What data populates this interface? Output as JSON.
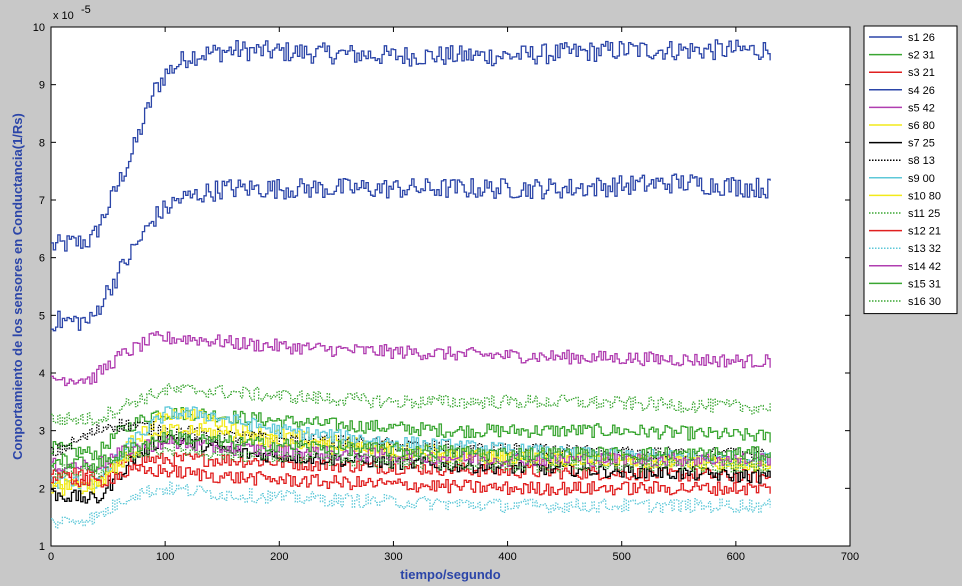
{
  "chart_data": {
    "type": "line",
    "xlabel": "tiempo/segundo",
    "ylabel": "Conportamiento de los sensores en Conductancia(1/Rs)",
    "xlim": [
      0,
      700
    ],
    "ylim": [
      1,
      10
    ],
    "xticks": [
      0,
      100,
      200,
      300,
      400,
      500,
      600,
      700
    ],
    "yticks": [
      1,
      2,
      3,
      4,
      5,
      6,
      7,
      8,
      9,
      10
    ],
    "y_exponent_label": "x 10",
    "y_exponent_power": "-5",
    "grid": false,
    "legend_position": "right",
    "x_end": 630,
    "series": [
      {
        "name": "s1 26",
        "color": "#2b45a8",
        "style": "solid",
        "values": [
          [
            0,
            6.2
          ],
          [
            35,
            6.3
          ],
          [
            45,
            6.7
          ],
          [
            70,
            7.8
          ],
          [
            90,
            8.9
          ],
          [
            100,
            9.2
          ],
          [
            120,
            9.5
          ],
          [
            160,
            9.6
          ],
          [
            300,
            9.5
          ],
          [
            400,
            9.5
          ],
          [
            500,
            9.6
          ],
          [
            630,
            9.6
          ]
        ]
      },
      {
        "name": "s2 31",
        "color": "#3aa632",
        "style": "solid",
        "values": [
          [
            0,
            2.7
          ],
          [
            40,
            2.6
          ],
          [
            60,
            3.0
          ],
          [
            90,
            3.3
          ],
          [
            130,
            3.3
          ],
          [
            180,
            3.2
          ],
          [
            250,
            3.1
          ],
          [
            350,
            3.0
          ],
          [
            500,
            3.0
          ],
          [
            630,
            2.9
          ]
        ]
      },
      {
        "name": "s3 21",
        "color": "#e01f1f",
        "style": "solid",
        "values": [
          [
            0,
            2.3
          ],
          [
            40,
            2.2
          ],
          [
            70,
            2.5
          ],
          [
            100,
            2.5
          ],
          [
            150,
            2.5
          ],
          [
            250,
            2.4
          ],
          [
            400,
            2.3
          ],
          [
            630,
            2.2
          ]
        ]
      },
      {
        "name": "s4 26",
        "color": "#2b45a8",
        "style": "solid",
        "values": [
          [
            0,
            4.9
          ],
          [
            35,
            4.9
          ],
          [
            45,
            5.3
          ],
          [
            70,
            6.1
          ],
          [
            90,
            6.7
          ],
          [
            110,
            7.0
          ],
          [
            150,
            7.2
          ],
          [
            300,
            7.2
          ],
          [
            450,
            7.2
          ],
          [
            550,
            7.3
          ],
          [
            630,
            7.2
          ]
        ]
      },
      {
        "name": "s5 42",
        "color": "#b03db0",
        "style": "solid",
        "values": [
          [
            0,
            3.9
          ],
          [
            35,
            3.9
          ],
          [
            60,
            4.3
          ],
          [
            90,
            4.6
          ],
          [
            120,
            4.6
          ],
          [
            170,
            4.5
          ],
          [
            250,
            4.4
          ],
          [
            400,
            4.3
          ],
          [
            630,
            4.2
          ]
        ]
      },
      {
        "name": "s6 80",
        "color": "#f2ea1a",
        "style": "solid",
        "values": [
          [
            0,
            2.0
          ],
          [
            40,
            2.0
          ],
          [
            70,
            2.8
          ],
          [
            100,
            3.3
          ],
          [
            120,
            3.3
          ],
          [
            170,
            3.0
          ],
          [
            250,
            2.8
          ],
          [
            350,
            2.6
          ],
          [
            500,
            2.5
          ],
          [
            630,
            2.4
          ]
        ]
      },
      {
        "name": "s7 25",
        "color": "#000000",
        "style": "solid",
        "values": [
          [
            0,
            1.9
          ],
          [
            40,
            1.8
          ],
          [
            70,
            2.5
          ],
          [
            100,
            2.9
          ],
          [
            120,
            2.8
          ],
          [
            170,
            2.6
          ],
          [
            250,
            2.5
          ],
          [
            350,
            2.4
          ],
          [
            500,
            2.3
          ],
          [
            630,
            2.2
          ]
        ]
      },
      {
        "name": "s8 13",
        "color": "#000000",
        "style": "dotted",
        "values": [
          [
            0,
            2.6
          ],
          [
            30,
            2.9
          ],
          [
            50,
            3.1
          ],
          [
            70,
            3.1
          ],
          [
            100,
            3.0
          ],
          [
            150,
            2.9
          ],
          [
            250,
            2.8
          ],
          [
            350,
            2.7
          ],
          [
            500,
            2.6
          ],
          [
            630,
            2.6
          ]
        ]
      },
      {
        "name": "s9 00",
        "color": "#5ec8d8",
        "style": "solid",
        "values": [
          [
            0,
            2.1
          ],
          [
            40,
            2.1
          ],
          [
            70,
            2.8
          ],
          [
            100,
            3.3
          ],
          [
            130,
            3.3
          ],
          [
            200,
            3.0
          ],
          [
            300,
            2.8
          ],
          [
            450,
            2.6
          ],
          [
            630,
            2.5
          ]
        ]
      },
      {
        "name": "s10 80",
        "color": "#f2ea1a",
        "style": "solid",
        "values": [
          [
            0,
            2.1
          ],
          [
            40,
            2.1
          ],
          [
            70,
            2.6
          ],
          [
            100,
            3.0
          ],
          [
            130,
            3.0
          ],
          [
            200,
            2.8
          ],
          [
            300,
            2.6
          ],
          [
            450,
            2.5
          ],
          [
            630,
            2.4
          ]
        ]
      },
      {
        "name": "s11 25",
        "color": "#3aa632",
        "style": "dotted",
        "values": [
          [
            0,
            3.2
          ],
          [
            40,
            3.2
          ],
          [
            70,
            3.5
          ],
          [
            100,
            3.7
          ],
          [
            130,
            3.7
          ],
          [
            200,
            3.6
          ],
          [
            300,
            3.5
          ],
          [
            450,
            3.5
          ],
          [
            630,
            3.4
          ]
        ]
      },
      {
        "name": "s12 21",
        "color": "#e01f1f",
        "style": "solid",
        "values": [
          [
            0,
            2.2
          ],
          [
            40,
            2.1
          ],
          [
            70,
            2.3
          ],
          [
            100,
            2.3
          ],
          [
            150,
            2.2
          ],
          [
            250,
            2.1
          ],
          [
            400,
            2.0
          ],
          [
            630,
            2.0
          ]
        ]
      },
      {
        "name": "s13 32",
        "color": "#5ec8d8",
        "style": "dotted",
        "values": [
          [
            0,
            1.4
          ],
          [
            40,
            1.5
          ],
          [
            70,
            1.9
          ],
          [
            100,
            2.0
          ],
          [
            150,
            1.9
          ],
          [
            250,
            1.8
          ],
          [
            400,
            1.7
          ],
          [
            630,
            1.7
          ]
        ]
      },
      {
        "name": "s14 42",
        "color": "#b03db0",
        "style": "solid",
        "values": [
          [
            0,
            2.4
          ],
          [
            40,
            2.4
          ],
          [
            70,
            2.7
          ],
          [
            100,
            2.8
          ],
          [
            150,
            2.7
          ],
          [
            250,
            2.6
          ],
          [
            400,
            2.5
          ],
          [
            630,
            2.5
          ]
        ]
      },
      {
        "name": "s15 31",
        "color": "#3aa632",
        "style": "solid",
        "values": [
          [
            0,
            2.5
          ],
          [
            40,
            2.4
          ],
          [
            70,
            2.7
          ],
          [
            100,
            2.9
          ],
          [
            150,
            2.8
          ],
          [
            250,
            2.7
          ],
          [
            400,
            2.6
          ],
          [
            630,
            2.6
          ]
        ]
      },
      {
        "name": "s16 30",
        "color": "#3aa632",
        "style": "dotted",
        "values": [
          [
            0,
            2.3
          ],
          [
            40,
            2.3
          ],
          [
            70,
            2.6
          ],
          [
            100,
            2.7
          ],
          [
            150,
            2.6
          ],
          [
            250,
            2.5
          ],
          [
            400,
            2.4
          ],
          [
            630,
            2.4
          ]
        ]
      }
    ]
  }
}
